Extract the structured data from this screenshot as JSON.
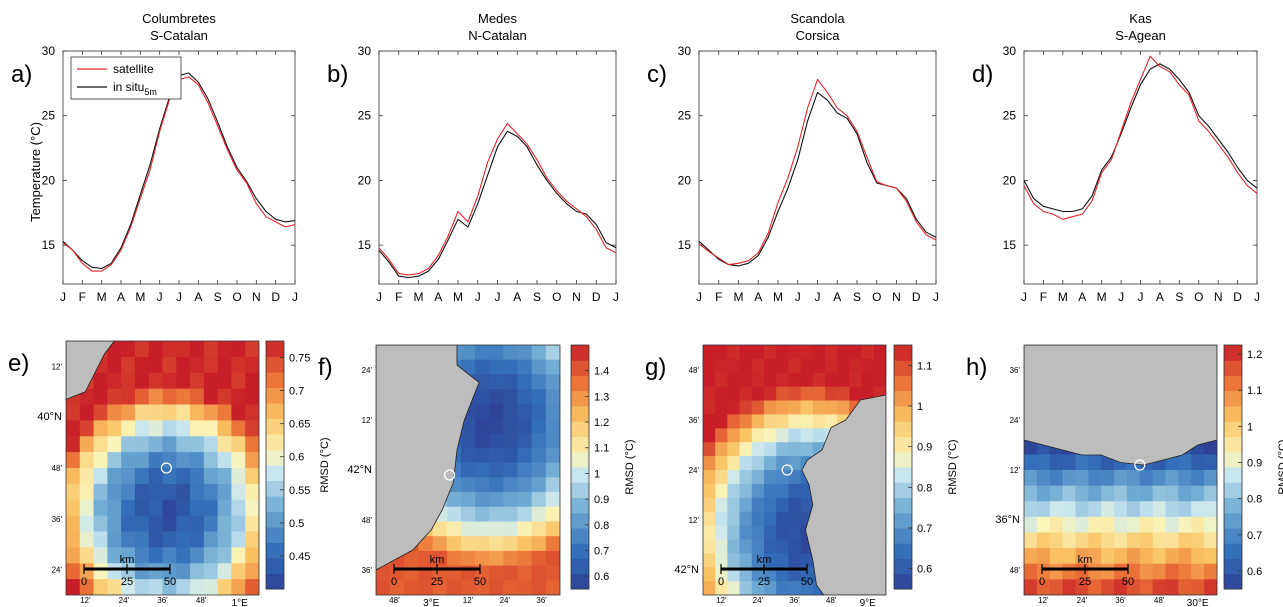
{
  "figure": {
    "ylabel_top": "Temperature (°C)",
    "colorbar_label": "RMSD (°C)",
    "colors": {
      "satellite": "#e8242b",
      "insitu": "#111111",
      "land": "#bdbdbd",
      "site": "#ffffff"
    }
  },
  "chart_data": [
    {
      "panel": "a)",
      "type": "line",
      "title": [
        "Columbretes",
        "S-Catalan"
      ],
      "months": [
        "J",
        "F",
        "M",
        "A",
        "M",
        "J",
        "J",
        "A",
        "S",
        "O",
        "N",
        "D",
        "J"
      ],
      "ylim": [
        12,
        30
      ],
      "yticks": [
        15,
        20,
        25,
        30
      ],
      "legend": [
        "satellite",
        "in situ",
        "5m"
      ],
      "x_month": [
        0,
        0.5,
        1,
        1.5,
        2,
        2.5,
        3,
        3.5,
        4,
        4.5,
        5,
        5.5,
        6,
        6.5,
        7,
        7.5,
        8,
        8.5,
        9,
        9.5,
        10,
        10.5,
        11,
        11.5,
        12
      ],
      "series": [
        {
          "name": "satellite",
          "values": [
            15.2,
            14.6,
            13.6,
            13.0,
            13.0,
            13.5,
            14.6,
            16.4,
            18.6,
            20.8,
            23.8,
            26.2,
            27.8,
            28.0,
            27.4,
            26.0,
            24.2,
            22.4,
            20.8,
            19.8,
            18.2,
            17.2,
            16.8,
            16.4,
            16.6
          ]
        },
        {
          "name": "in situ",
          "values": [
            15.3,
            14.6,
            13.8,
            13.3,
            13.2,
            13.6,
            14.8,
            16.6,
            18.9,
            21.2,
            24.0,
            26.4,
            28.1,
            28.3,
            27.6,
            26.3,
            24.5,
            22.6,
            21.0,
            19.9,
            18.6,
            17.6,
            17.0,
            16.8,
            16.9
          ]
        }
      ]
    },
    {
      "panel": "b)",
      "type": "line",
      "title": [
        "Medes",
        "N-Catalan"
      ],
      "months": [
        "J",
        "F",
        "M",
        "A",
        "M",
        "J",
        "J",
        "A",
        "S",
        "O",
        "N",
        "D",
        "J"
      ],
      "ylim": [
        12,
        30
      ],
      "yticks": [
        15,
        20,
        25,
        30
      ],
      "x_month": [
        0,
        0.5,
        1,
        1.5,
        2,
        2.5,
        3,
        3.5,
        4,
        4.5,
        5,
        5.5,
        6,
        6.5,
        7,
        7.5,
        8,
        8.5,
        9,
        9.5,
        10,
        10.5,
        11,
        11.5,
        12
      ],
      "series": [
        {
          "name": "satellite",
          "values": [
            14.8,
            13.9,
            12.8,
            12.7,
            12.8,
            13.2,
            14.2,
            15.7,
            17.6,
            16.8,
            18.8,
            21.4,
            23.2,
            24.4,
            23.6,
            22.8,
            21.6,
            20.2,
            19.2,
            18.4,
            17.8,
            17.2,
            16.2,
            14.8,
            14.4
          ]
        },
        {
          "name": "in situ",
          "values": [
            14.6,
            13.7,
            12.6,
            12.5,
            12.6,
            13.0,
            13.9,
            15.4,
            17.0,
            16.4,
            18.2,
            20.4,
            22.6,
            23.8,
            23.4,
            22.6,
            21.2,
            20.0,
            19.0,
            18.2,
            17.6,
            17.4,
            16.6,
            15.2,
            14.8
          ]
        }
      ]
    },
    {
      "panel": "c)",
      "type": "line",
      "title": [
        "Scandola",
        "Corsica"
      ],
      "months": [
        "J",
        "F",
        "M",
        "A",
        "M",
        "J",
        "J",
        "A",
        "S",
        "O",
        "N",
        "D",
        "J"
      ],
      "ylim": [
        12,
        30
      ],
      "yticks": [
        15,
        20,
        25,
        30
      ],
      "x_month": [
        0,
        0.5,
        1,
        1.5,
        2,
        2.5,
        3,
        3.5,
        4,
        4.5,
        5,
        5.5,
        6,
        6.5,
        7,
        7.5,
        8,
        8.5,
        9,
        9.5,
        10,
        10.5,
        11,
        11.5,
        12
      ],
      "series": [
        {
          "name": "satellite",
          "values": [
            15.1,
            14.5,
            14.0,
            13.5,
            13.6,
            13.8,
            14.4,
            15.9,
            18.3,
            20.2,
            22.6,
            25.6,
            27.8,
            26.8,
            25.6,
            25.0,
            23.8,
            21.8,
            19.9,
            19.6,
            19.4,
            18.4,
            16.8,
            15.8,
            15.4
          ]
        },
        {
          "name": "in situ",
          "values": [
            15.3,
            14.6,
            13.9,
            13.5,
            13.4,
            13.6,
            14.2,
            15.6,
            17.6,
            19.4,
            21.6,
            24.6,
            26.8,
            26.2,
            25.2,
            24.8,
            23.6,
            21.4,
            19.8,
            19.6,
            19.4,
            18.6,
            17.0,
            16.0,
            15.6
          ]
        }
      ]
    },
    {
      "panel": "d)",
      "type": "line",
      "title": [
        "Kas",
        "S-Agean"
      ],
      "months": [
        "J",
        "F",
        "M",
        "A",
        "M",
        "J",
        "J",
        "A",
        "S",
        "O",
        "N",
        "D",
        "J"
      ],
      "ylim": [
        12,
        30
      ],
      "yticks": [
        15,
        20,
        25,
        30
      ],
      "x_month": [
        0,
        0.5,
        1,
        1.5,
        2,
        2.5,
        3,
        3.5,
        4,
        4.5,
        5,
        5.5,
        6,
        6.5,
        7,
        7.5,
        8,
        8.5,
        9,
        9.5,
        10,
        10.5,
        11,
        11.5,
        12
      ],
      "series": [
        {
          "name": "satellite",
          "values": [
            19.6,
            18.2,
            17.6,
            17.4,
            17.0,
            17.2,
            17.4,
            18.4,
            20.6,
            21.6,
            23.8,
            26.0,
            27.8,
            29.6,
            28.8,
            28.4,
            27.4,
            26.6,
            24.6,
            23.8,
            22.8,
            21.8,
            20.6,
            19.6,
            19.0
          ]
        },
        {
          "name": "in situ",
          "values": [
            20.0,
            18.6,
            18.0,
            17.8,
            17.6,
            17.6,
            17.8,
            18.8,
            20.8,
            21.8,
            23.6,
            25.6,
            27.4,
            28.6,
            29.0,
            28.6,
            27.8,
            26.8,
            25.0,
            24.2,
            23.2,
            22.2,
            21.0,
            20.0,
            19.4
          ]
        }
      ]
    },
    {
      "panel": "e)",
      "type": "heatmap",
      "cmin": 0.4,
      "cmax": 0.775,
      "cticks": [
        "0.45",
        "0.5",
        "0.55",
        "0.6",
        "0.65",
        "0.7",
        "0.75"
      ],
      "lat_ticks": [
        "12'",
        "40°N",
        "48'",
        "36'",
        "24'"
      ],
      "lon_ticks": [
        "12'",
        "24'",
        "36'",
        "48'",
        "1°E"
      ],
      "scale": {
        "label": "km",
        "ticks": [
          "0",
          "25",
          "50"
        ]
      },
      "field": {
        "cols": 14,
        "rows": 16,
        "cx": 0.52,
        "cy": 0.67,
        "lo": 0.42,
        "hi": 0.77,
        "rad": 0.75,
        "gradx": 0.0,
        "grady": 0.0,
        "land": [
          [
            0,
            0
          ],
          [
            0.25,
            0
          ],
          [
            0.2,
            0.05
          ],
          [
            0.1,
            0.2
          ],
          [
            0,
            0.23
          ]
        ]
      },
      "site": [
        0.52,
        0.5
      ]
    },
    {
      "panel": "f)",
      "type": "heatmap",
      "cmin": 0.55,
      "cmax": 1.5,
      "cticks": [
        "0.6",
        "0.7",
        "0.8",
        "0.9",
        "1",
        "1.1",
        "1.2",
        "1.3",
        "1.4"
      ],
      "lat_ticks": [
        "24'",
        "12'",
        "42°N",
        "48'",
        "36'"
      ],
      "lon_ticks": [
        "48'",
        "3°E",
        "12'",
        "24'",
        "36'"
      ],
      "scale": {
        "label": "km",
        "ticks": [
          "0",
          "25",
          "50"
        ]
      },
      "field": {
        "cols": 13,
        "rows": 17,
        "cx": 0.62,
        "cy": 0.3,
        "lo": 0.57,
        "hi": 1.4,
        "rad": 0.9,
        "gradx": 0.0,
        "grady": 0.0,
        "land": [
          [
            0,
            0
          ],
          [
            0.44,
            0
          ],
          [
            0.44,
            0.08
          ],
          [
            0.56,
            0.15
          ],
          [
            0.48,
            0.3
          ],
          [
            0.44,
            0.42
          ],
          [
            0.42,
            0.55
          ],
          [
            0.36,
            0.66
          ],
          [
            0.3,
            0.74
          ],
          [
            0.2,
            0.82
          ],
          [
            0.1,
            0.86
          ],
          [
            0,
            0.9
          ]
        ]
      },
      "site": [
        0.4,
        0.52
      ]
    },
    {
      "panel": "g)",
      "type": "heatmap",
      "cmin": 0.55,
      "cmax": 1.15,
      "cticks": [
        "0.6",
        "0.7",
        "0.8",
        "0.9",
        "1",
        "1.1"
      ],
      "lat_ticks": [
        "48'",
        "36'",
        "24'",
        "12'",
        "42°N"
      ],
      "lon_ticks": [
        "12'",
        "24'",
        "36'",
        "48'",
        "9°E"
      ],
      "scale": {
        "label": "km",
        "ticks": [
          "0",
          "25",
          "50"
        ]
      },
      "field": {
        "cols": 15,
        "rows": 18,
        "cx": 0.58,
        "cy": 0.75,
        "lo": 0.57,
        "hi": 1.15,
        "rad": 0.9,
        "gradx": 0.0,
        "grady": 0.0,
        "land": [
          [
            1,
            0.2
          ],
          [
            0.86,
            0.22
          ],
          [
            0.78,
            0.3
          ],
          [
            0.7,
            0.33
          ],
          [
            0.65,
            0.42
          ],
          [
            0.57,
            0.46
          ],
          [
            0.54,
            0.5
          ],
          [
            0.58,
            0.56
          ],
          [
            0.6,
            0.64
          ],
          [
            0.56,
            0.74
          ],
          [
            0.6,
            0.86
          ],
          [
            0.62,
            0.96
          ],
          [
            0.66,
            1
          ],
          [
            1,
            1
          ]
        ]
      },
      "site": [
        0.46,
        0.5
      ]
    },
    {
      "panel": "h)",
      "type": "heatmap",
      "cmin": 0.55,
      "cmax": 1.225,
      "cticks": [
        "0.6",
        "0.7",
        "0.8",
        "0.9",
        "1",
        "1.1",
        "1.2"
      ],
      "lat_ticks": [
        "36'",
        "24'",
        "12'",
        "36°N",
        "48'"
      ],
      "lon_ticks": [
        "12'",
        "24'",
        "36'",
        "48'",
        "30°E"
      ],
      "scale": {
        "label": "km",
        "ticks": [
          "0",
          "25",
          "50"
        ]
      },
      "field": {
        "cols": 15,
        "rows": 16,
        "cx": 0.5,
        "cy": 0.3,
        "lo": 0.57,
        "hi": 1.2,
        "rad": 0.8,
        "gradx": 0.0,
        "grady": 1.0,
        "land": [
          [
            0,
            0
          ],
          [
            1,
            0
          ],
          [
            1,
            0.38
          ],
          [
            0.9,
            0.4
          ],
          [
            0.82,
            0.44
          ],
          [
            0.72,
            0.46
          ],
          [
            0.62,
            0.48
          ],
          [
            0.5,
            0.47
          ],
          [
            0.4,
            0.44
          ],
          [
            0.3,
            0.44
          ],
          [
            0.2,
            0.42
          ],
          [
            0.1,
            0.4
          ],
          [
            0,
            0.38
          ]
        ]
      },
      "site": [
        0.6,
        0.48
      ]
    }
  ]
}
